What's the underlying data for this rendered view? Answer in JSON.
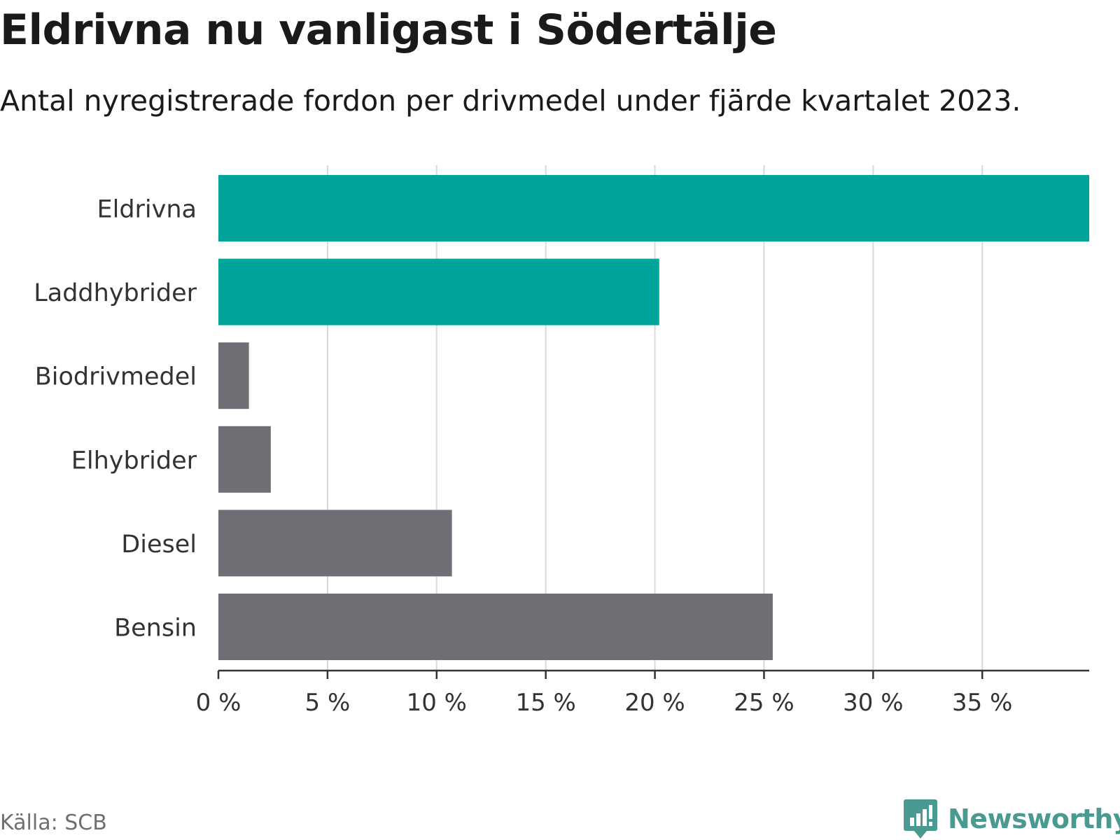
{
  "title": "Eldrivna nu vanligast i Södertälje",
  "subtitle": "Antal nyregistrerade fordon per drivmedel under fjärde kvartalet 2023.",
  "source": "Källa: SCB",
  "brand": {
    "name": "Newsworthy",
    "icon": "newsworthy-logo-icon",
    "color": "#4a9a92"
  },
  "chart_data": {
    "type": "bar",
    "orientation": "horizontal",
    "categories": [
      "Eldrivna",
      "Laddhybrider",
      "Biodrivmedel",
      "Elhybrider",
      "Diesel",
      "Bensin"
    ],
    "values": [
      39.9,
      20.2,
      1.4,
      2.4,
      10.7,
      25.4
    ],
    "colors": [
      "#00a499",
      "#00a499",
      "#6f6e75",
      "#6f6e75",
      "#6f6e75",
      "#6f6e75"
    ],
    "xticks": [
      0,
      5,
      10,
      15,
      20,
      25,
      30,
      35
    ],
    "xtick_labels": [
      "0 %",
      "5 %",
      "10 %",
      "15 %",
      "20 %",
      "25 %",
      "30 %",
      "35 %"
    ],
    "xlim": [
      0,
      39.9
    ],
    "xlabel": "",
    "ylabel": "",
    "grid": true
  }
}
